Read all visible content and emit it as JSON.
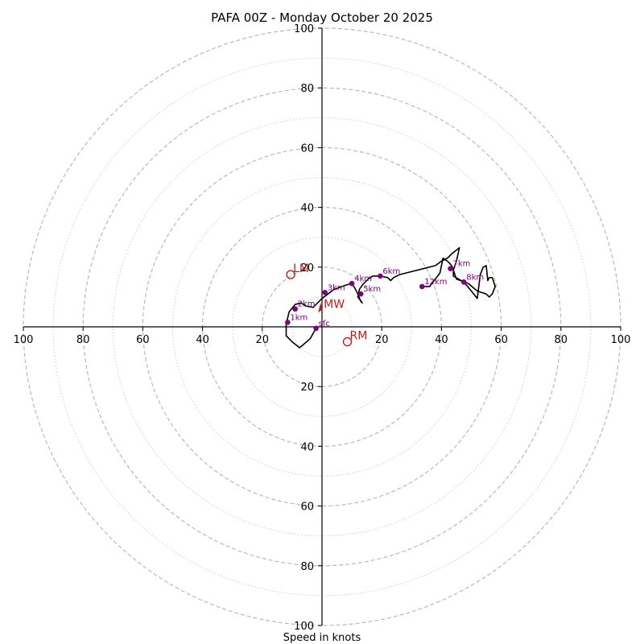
{
  "chart_data": {
    "type": "scatter",
    "title": "PAFA 00Z - Monday October 20 2025",
    "xlabel": "Speed in knots",
    "ylabel": "",
    "xlim": [
      -100,
      100
    ],
    "ylim": [
      -100,
      100
    ],
    "major_rings": [
      20,
      40,
      60,
      80,
      100
    ],
    "minor_rings": [
      10,
      30,
      50,
      70,
      90
    ],
    "ticks": [
      {
        "value": -100,
        "label": "100"
      },
      {
        "value": -80,
        "label": "80"
      },
      {
        "value": -60,
        "label": "60"
      },
      {
        "value": -40,
        "label": "40"
      },
      {
        "value": -20,
        "label": "20"
      },
      {
        "value": 20,
        "label": "20"
      },
      {
        "value": 40,
        "label": "40"
      },
      {
        "value": 60,
        "label": "60"
      },
      {
        "value": 80,
        "label": "80"
      },
      {
        "value": 100,
        "label": "100"
      }
    ],
    "colors": {
      "trace": "#000000",
      "height_markers": "#800080",
      "storm_motion": "#b22222",
      "grid": "#b9b9b9"
    },
    "series": [
      {
        "name": "hodograph",
        "x": [
          -2,
          -4,
          -7.5,
          -10,
          -12,
          -12,
          -11,
          -9,
          -7,
          -5.5,
          -3,
          0,
          2,
          4,
          8,
          10,
          11,
          12,
          13,
          13.5,
          12,
          12.5,
          13.5,
          15.5,
          17,
          19.5,
          22,
          23,
          24,
          26,
          30,
          34,
          38,
          40,
          42,
          43,
          43.5,
          46,
          45,
          44,
          45,
          49,
          52,
          55,
          56,
          57,
          58,
          57,
          56,
          55.5,
          55,
          54,
          53,
          52,
          50,
          47.5,
          44,
          44,
          43,
          42,
          40.5,
          39.5,
          36,
          33.5
        ],
        "y": [
          -0.5,
          -4,
          -7,
          -5,
          -3,
          1,
          5,
          7.5,
          8,
          7,
          6.5,
          9.5,
          11,
          12.5,
          14,
          14.5,
          13,
          11,
          8.5,
          8,
          10,
          12.5,
          14,
          16,
          17,
          17,
          16.5,
          15.5,
          16.5,
          17.5,
          18.5,
          19.5,
          20.5,
          22,
          23,
          24,
          24.5,
          26.5,
          22,
          19,
          16,
          14.5,
          12,
          11,
          10,
          11,
          13.5,
          16.5,
          16.5,
          15.5,
          20.5,
          20,
          17.5,
          9.5,
          12,
          15,
          17,
          19.5,
          21,
          22,
          23,
          18,
          13.5,
          13.5
        ]
      }
    ],
    "height_markers": [
      {
        "label": "sfc",
        "x": -2,
        "y": -0.5
      },
      {
        "label": "1km",
        "x": -11.5,
        "y": 1.5
      },
      {
        "label": "2km",
        "x": -9,
        "y": 6
      },
      {
        "label": "3km",
        "x": 1,
        "y": 11.5
      },
      {
        "label": "4km",
        "x": 10,
        "y": 14.5
      },
      {
        "label": "5km",
        "x": 13,
        "y": 11
      },
      {
        "label": "6km",
        "x": 19.5,
        "y": 17
      },
      {
        "label": "7km",
        "x": 43,
        "y": 19.5
      },
      {
        "label": "8km",
        "x": 47.5,
        "y": 15
      },
      {
        "label": "12km",
        "x": 33.5,
        "y": 13.5
      }
    ],
    "storm_motion": [
      {
        "label": "LM",
        "x": -10.5,
        "y": 17.5
      },
      {
        "label": "RM",
        "x": 8.5,
        "y": -5
      },
      {
        "label": "MW",
        "x": -0.5,
        "y": 6
      }
    ]
  }
}
